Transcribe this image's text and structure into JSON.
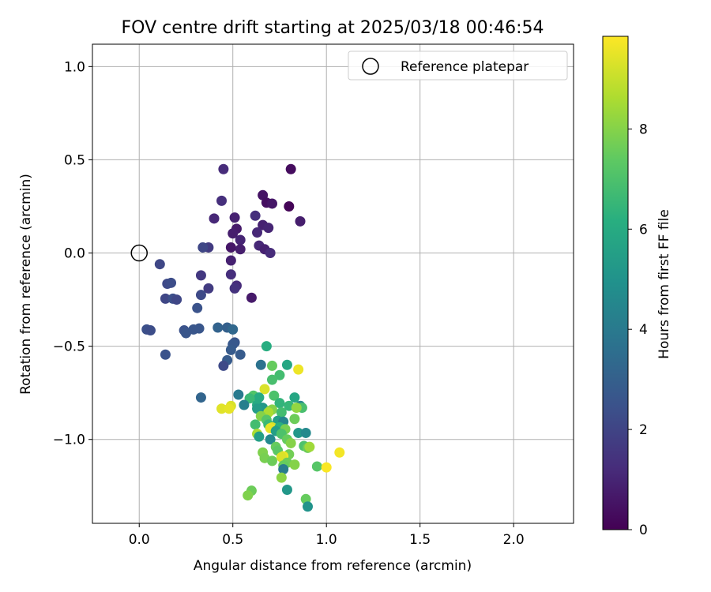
{
  "chart_data": {
    "type": "scatter",
    "title": "FOV centre drift starting at 2025/03/18 00:46:54",
    "xlabel": "Angular distance from reference (arcmin)",
    "ylabel": "Rotation from reference (arcmin)",
    "colorbar_label": "Hours from first FF file",
    "colormap": "viridis",
    "xlim": [
      -0.25,
      2.32
    ],
    "ylim": [
      -1.45,
      1.12
    ],
    "clim": [
      0,
      9.85
    ],
    "xticks": [
      0.0,
      0.5,
      1.0,
      1.5,
      2.0
    ],
    "xtick_labels": [
      "0.0",
      "0.5",
      "1.0",
      "1.5",
      "2.0"
    ],
    "yticks": [
      -1.0,
      -0.5,
      0.0,
      0.5,
      1.0
    ],
    "ytick_labels": [
      "−1.0",
      "−0.5",
      "0.0",
      "0.5",
      "1.0"
    ],
    "cbar_ticks": [
      0,
      2,
      4,
      6,
      8
    ],
    "cbar_tick_labels": [
      "0",
      "2",
      "4",
      "6",
      "8"
    ],
    "grid": true,
    "legend": {
      "position": "upper-right",
      "entries": [
        {
          "label": "Reference platepar",
          "marker": "open-circle"
        }
      ]
    },
    "reference_point": {
      "x": 0.0,
      "y": 0.0
    },
    "points": [
      [
        0.45,
        0.45,
        1.2
      ],
      [
        0.81,
        0.45,
        0.3
      ],
      [
        0.66,
        0.31,
        0.5
      ],
      [
        0.44,
        0.28,
        1.3
      ],
      [
        0.68,
        0.27,
        0.4
      ],
      [
        0.71,
        0.265,
        0.6
      ],
      [
        0.8,
        0.25,
        0.1
      ],
      [
        0.62,
        0.2,
        1.3
      ],
      [
        0.4,
        0.185,
        1.1
      ],
      [
        0.51,
        0.19,
        0.9
      ],
      [
        0.86,
        0.17,
        0.8
      ],
      [
        0.66,
        0.15,
        0.9
      ],
      [
        0.52,
        0.13,
        0.7
      ],
      [
        0.69,
        0.135,
        1.0
      ],
      [
        0.63,
        0.11,
        1.1
      ],
      [
        0.5,
        0.105,
        0.8
      ],
      [
        0.54,
        0.07,
        1.0
      ],
      [
        0.64,
        0.04,
        1.1
      ],
      [
        0.49,
        0.03,
        0.6
      ],
      [
        0.37,
        0.03,
        1.7
      ],
      [
        0.34,
        0.03,
        2.1
      ],
      [
        0.67,
        0.02,
        0.9
      ],
      [
        0.54,
        0.02,
        0.8
      ],
      [
        0.7,
        0.0,
        1.2
      ],
      [
        0.49,
        -0.04,
        0.9
      ],
      [
        0.11,
        -0.06,
        2.1
      ],
      [
        0.33,
        -0.12,
        1.6
      ],
      [
        0.49,
        -0.115,
        1.3
      ],
      [
        0.15,
        -0.165,
        2.2
      ],
      [
        0.17,
        -0.16,
        2.3
      ],
      [
        0.52,
        -0.175,
        1.2
      ],
      [
        0.51,
        -0.19,
        1.4
      ],
      [
        0.37,
        -0.19,
        1.7
      ],
      [
        0.6,
        -0.24,
        0.7
      ],
      [
        0.33,
        -0.225,
        2.2
      ],
      [
        0.14,
        -0.245,
        2.1
      ],
      [
        0.18,
        -0.245,
        2.4
      ],
      [
        0.2,
        -0.25,
        2.1
      ],
      [
        0.31,
        -0.295,
        2.5
      ],
      [
        0.04,
        -0.41,
        2.4
      ],
      [
        0.06,
        -0.415,
        2.3
      ],
      [
        0.24,
        -0.415,
        2.5
      ],
      [
        0.25,
        -0.43,
        2.6
      ],
      [
        0.29,
        -0.41,
        2.6
      ],
      [
        0.32,
        -0.405,
        2.6
      ],
      [
        0.42,
        -0.4,
        3.1
      ],
      [
        0.47,
        -0.4,
        3.0
      ],
      [
        0.5,
        -0.41,
        3.3
      ],
      [
        0.51,
        -0.48,
        2.6
      ],
      [
        0.5,
        -0.49,
        2.7
      ],
      [
        0.49,
        -0.52,
        2.8
      ],
      [
        0.54,
        -0.545,
        2.8
      ],
      [
        0.14,
        -0.545,
        2.5
      ],
      [
        0.68,
        -0.5,
        6.1
      ],
      [
        0.47,
        -0.575,
        2.8
      ],
      [
        0.45,
        -0.605,
        2.2
      ],
      [
        0.65,
        -0.6,
        3.7
      ],
      [
        0.71,
        -0.605,
        7.5
      ],
      [
        0.79,
        -0.6,
        5.8
      ],
      [
        0.85,
        -0.625,
        9.6
      ],
      [
        0.75,
        -0.655,
        6.8
      ],
      [
        0.71,
        -0.68,
        6.9
      ],
      [
        0.67,
        -0.73,
        9.3
      ],
      [
        0.53,
        -0.76,
        4.0
      ],
      [
        0.72,
        -0.765,
        7.0
      ],
      [
        0.61,
        -0.765,
        7.1
      ],
      [
        0.64,
        -0.775,
        6.0
      ],
      [
        0.59,
        -0.78,
        6.6
      ],
      [
        0.33,
        -0.775,
        3.2
      ],
      [
        0.83,
        -0.775,
        5.8
      ],
      [
        0.86,
        -0.82,
        4.5
      ],
      [
        0.87,
        -0.83,
        6.9
      ],
      [
        0.75,
        -0.805,
        6.4
      ],
      [
        0.8,
        -0.82,
        6.5
      ],
      [
        0.56,
        -0.815,
        4.2
      ],
      [
        0.63,
        -0.815,
        6.0
      ],
      [
        0.66,
        -0.83,
        5.2
      ],
      [
        0.49,
        -0.82,
        9.3
      ],
      [
        0.44,
        -0.835,
        9.4
      ],
      [
        0.48,
        -0.835,
        9.5
      ],
      [
        0.63,
        -0.835,
        5.4
      ],
      [
        0.7,
        -0.845,
        8.1
      ],
      [
        0.71,
        -0.84,
        8.0
      ],
      [
        0.76,
        -0.855,
        6.8
      ],
      [
        0.84,
        -0.83,
        8.2
      ],
      [
        0.69,
        -0.855,
        8.6
      ],
      [
        0.65,
        -0.875,
        8.0
      ],
      [
        0.83,
        -0.89,
        7.6
      ],
      [
        0.68,
        -0.895,
        7.2
      ],
      [
        0.74,
        -0.9,
        5.5
      ],
      [
        0.77,
        -0.905,
        4.5
      ],
      [
        0.62,
        -0.92,
        6.8
      ],
      [
        0.69,
        -0.92,
        6.6
      ],
      [
        0.71,
        -0.935,
        9.2
      ],
      [
        0.7,
        -0.94,
        9.5
      ],
      [
        0.75,
        -0.935,
        6.2
      ],
      [
        0.78,
        -0.945,
        7.8
      ],
      [
        0.73,
        -0.955,
        5.5
      ],
      [
        0.63,
        -0.97,
        8.6
      ],
      [
        0.76,
        -0.97,
        7.0
      ],
      [
        0.85,
        -0.965,
        5.2
      ],
      [
        0.89,
        -0.965,
        4.6
      ],
      [
        0.64,
        -0.985,
        5.5
      ],
      [
        0.7,
        -1.0,
        4.6
      ],
      [
        0.79,
        -1.0,
        7.5
      ],
      [
        0.81,
        -1.02,
        8.0
      ],
      [
        0.88,
        -1.035,
        7.0
      ],
      [
        0.73,
        -1.04,
        7.5
      ],
      [
        0.9,
        -1.045,
        7.6
      ],
      [
        0.91,
        -1.04,
        8.4
      ],
      [
        0.66,
        -1.07,
        7.9
      ],
      [
        0.74,
        -1.06,
        7.3
      ],
      [
        0.8,
        -1.08,
        7.7
      ],
      [
        1.07,
        -1.07,
        9.7
      ],
      [
        0.77,
        -1.09,
        9.6
      ],
      [
        0.67,
        -1.1,
        7.8
      ],
      [
        0.71,
        -1.115,
        7.6
      ],
      [
        0.76,
        -1.095,
        9.3
      ],
      [
        0.79,
        -1.125,
        7.6
      ],
      [
        0.83,
        -1.135,
        8.0
      ],
      [
        0.77,
        -1.14,
        7.5
      ],
      [
        0.95,
        -1.145,
        7.2
      ],
      [
        1.0,
        -1.15,
        9.8
      ],
      [
        0.77,
        -1.16,
        4.1
      ],
      [
        0.76,
        -1.205,
        8.1
      ],
      [
        0.79,
        -1.27,
        5.2
      ],
      [
        0.6,
        -1.275,
        7.6
      ],
      [
        0.58,
        -1.3,
        7.9
      ],
      [
        0.89,
        -1.32,
        7.5
      ],
      [
        0.9,
        -1.36,
        5.0
      ]
    ]
  }
}
